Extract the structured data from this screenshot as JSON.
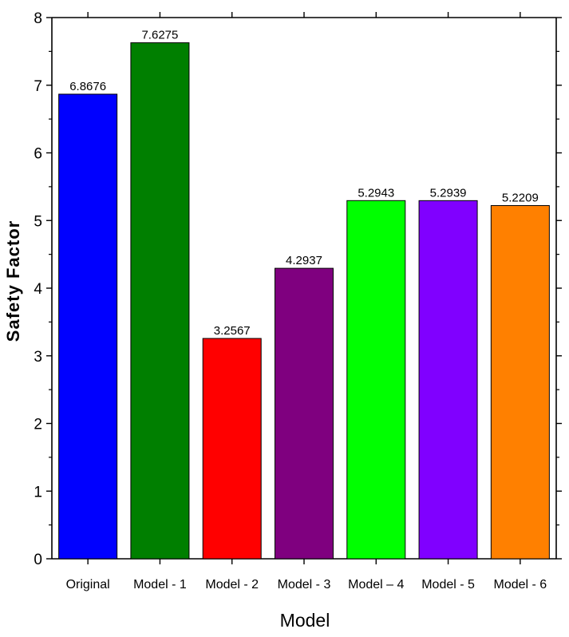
{
  "chart_data": {
    "type": "bar",
    "title": "",
    "xlabel": "Model",
    "ylabel": "Safety Factor",
    "ylim": [
      0,
      8
    ],
    "yticks": [
      0,
      1,
      2,
      3,
      4,
      5,
      6,
      7,
      8
    ],
    "categories": [
      "Original",
      "Model - 1",
      "Model - 2",
      "Model - 3",
      "Model – 4",
      "Model - 5",
      "Model - 6"
    ],
    "values": [
      6.8676,
      7.6275,
      3.2567,
      4.2937,
      5.2943,
      5.2939,
      5.2209
    ],
    "data_labels": [
      "6.8676",
      "7.6275",
      "3.2567",
      "4.2937",
      "5.2943",
      "5.2939",
      "5.2209"
    ],
    "colors": [
      "#0000ff",
      "#007f00",
      "#ff0000",
      "#7f007f",
      "#00ff00",
      "#8000ff",
      "#ff8000"
    ],
    "grid": false,
    "legend": "none"
  }
}
